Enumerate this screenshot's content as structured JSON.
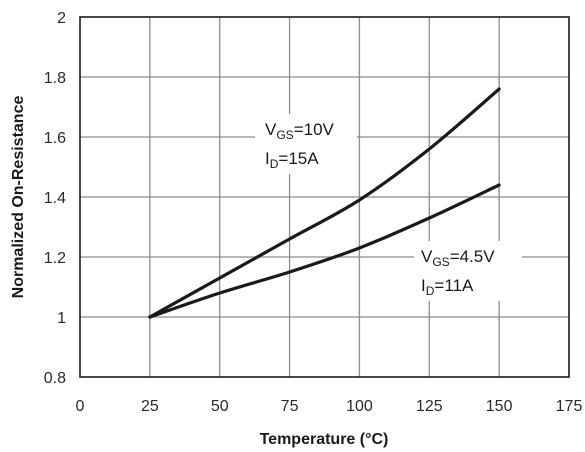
{
  "chart_data": {
    "type": "line",
    "title": "",
    "xlabel": "Temperature (°C)",
    "ylabel": "Normalized On-Resistance",
    "xlim": [
      0,
      175
    ],
    "ylim": [
      0.8,
      2
    ],
    "x_ticks": [
      "0",
      "25",
      "50",
      "75",
      "100",
      "125",
      "150",
      "175"
    ],
    "y_ticks": [
      "0.8",
      "1",
      "1.2",
      "1.4",
      "1.6",
      "1.8",
      "2"
    ],
    "grid": true,
    "series": [
      {
        "x": [
          25,
          50,
          75,
          100,
          125,
          150
        ],
        "y": [
          1.0,
          1.13,
          1.26,
          1.39,
          1.56,
          1.76
        ]
      },
      {
        "x": [
          25,
          50,
          75,
          100,
          125,
          150
        ],
        "y": [
          1.0,
          1.08,
          1.15,
          1.23,
          1.33,
          1.44
        ]
      }
    ],
    "annotations": [
      {
        "id": "upper",
        "line1": {
          "prefix": "V",
          "sub": "GS",
          "suffix": "=10V"
        },
        "line2": {
          "prefix": "I",
          "sub": "D",
          "suffix": "=15A"
        }
      },
      {
        "id": "lower",
        "line1": {
          "prefix": "V",
          "sub": "GS",
          "suffix": "=4.5V"
        },
        "line2": {
          "prefix": "I",
          "sub": "D",
          "suffix": "=11A"
        }
      }
    ],
    "colors": {
      "line": "#1a1a1a",
      "grid": "#8c8c8c",
      "frame": "#1a1a1a"
    }
  }
}
